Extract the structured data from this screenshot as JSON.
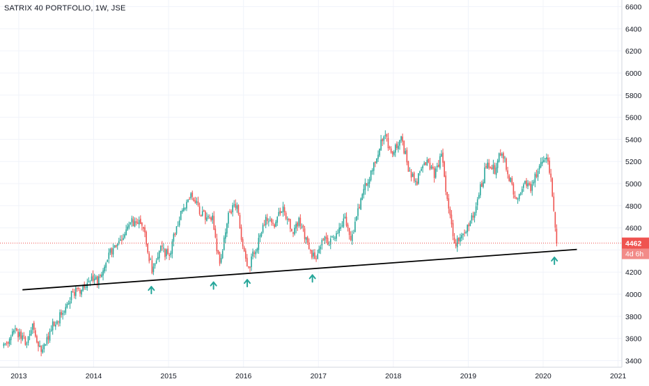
{
  "chart_data": {
    "type": "candlestick",
    "title": "SATRIX 40 PORTFOLIO, 1W, JSE",
    "x_tick_labels": [
      "2013",
      "2014",
      "2015",
      "2016",
      "2017",
      "2018",
      "2019",
      "2020",
      "2021"
    ],
    "y_tick_labels": [
      "3400",
      "3600",
      "3800",
      "4000",
      "4200",
      "4400",
      "4600",
      "4800",
      "5000",
      "5200",
      "5400",
      "5600",
      "5800",
      "6000",
      "6200",
      "6400",
      "6600"
    ],
    "y_ticks": [
      3400,
      3600,
      3800,
      4000,
      4200,
      4400,
      4600,
      4800,
      5000,
      5200,
      5400,
      5600,
      5800,
      6000,
      6200,
      6400,
      6600
    ],
    "x_ticks": [
      2013,
      2014,
      2015,
      2016,
      2017,
      2018,
      2019,
      2020,
      2021
    ],
    "xlim": [
      2012.75,
      2021.05
    ],
    "ylim": [
      3340,
      6660
    ],
    "grid": true,
    "colors": {
      "up": "#26a69a",
      "down": "#ef5350",
      "trendline": "#000000",
      "price_line": "#ef5350",
      "arrow": "#26a69a",
      "grid": "#f0f3fa",
      "axis_text": "#131722"
    },
    "anchors": [
      [
        2012.8,
        3520
      ],
      [
        2012.95,
        3660
      ],
      [
        2013.1,
        3580
      ],
      [
        2013.2,
        3720
      ],
      [
        2013.3,
        3450
      ],
      [
        2013.42,
        3680
      ],
      [
        2013.55,
        3800
      ],
      [
        2013.7,
        3990
      ],
      [
        2013.85,
        4060
      ],
      [
        2013.95,
        4150
      ],
      [
        2014.05,
        4130
      ],
      [
        2014.2,
        4350
      ],
      [
        2014.35,
        4500
      ],
      [
        2014.5,
        4660
      ],
      [
        2014.65,
        4620
      ],
      [
        2014.78,
        4220
      ],
      [
        2014.88,
        4400
      ],
      [
        2015.0,
        4350
      ],
      [
        2015.15,
        4700
      ],
      [
        2015.3,
        4880
      ],
      [
        2015.45,
        4720
      ],
      [
        2015.58,
        4700
      ],
      [
        2015.68,
        4280
      ],
      [
        2015.8,
        4700
      ],
      [
        2015.9,
        4820
      ],
      [
        2016.05,
        4200
      ],
      [
        2016.18,
        4450
      ],
      [
        2016.3,
        4680
      ],
      [
        2016.4,
        4620
      ],
      [
        2016.52,
        4780
      ],
      [
        2016.65,
        4550
      ],
      [
        2016.75,
        4680
      ],
      [
        2016.85,
        4450
      ],
      [
        2016.95,
        4330
      ],
      [
        2017.05,
        4500
      ],
      [
        2017.2,
        4480
      ],
      [
        2017.35,
        4680
      ],
      [
        2017.45,
        4500
      ],
      [
        2017.55,
        4820
      ],
      [
        2017.65,
        5020
      ],
      [
        2017.78,
        5260
      ],
      [
        2017.88,
        5450
      ],
      [
        2017.98,
        5230
      ],
      [
        2018.1,
        5420
      ],
      [
        2018.2,
        5150
      ],
      [
        2018.3,
        4990
      ],
      [
        2018.42,
        5200
      ],
      [
        2018.55,
        5080
      ],
      [
        2018.65,
        5250
      ],
      [
        2018.72,
        4820
      ],
      [
        2018.82,
        4450
      ],
      [
        2018.92,
        4540
      ],
      [
        2019.05,
        4680
      ],
      [
        2019.15,
        4920
      ],
      [
        2019.25,
        5200
      ],
      [
        2019.35,
        5120
      ],
      [
        2019.45,
        5300
      ],
      [
        2019.55,
        5050
      ],
      [
        2019.65,
        4850
      ],
      [
        2019.75,
        5050
      ],
      [
        2019.85,
        4950
      ],
      [
        2019.95,
        5200
      ],
      [
        2020.05,
        5240
      ],
      [
        2020.1,
        5050
      ],
      [
        2020.15,
        4640
      ],
      [
        2020.18,
        4462
      ]
    ],
    "annotations": [
      {
        "type": "trendline",
        "x1": 2013.05,
        "y1": 4040,
        "x2": 2020.45,
        "y2": 4405
      },
      {
        "type": "horizontal_line",
        "y": 4462,
        "style": "dotted"
      },
      {
        "type": "arrows",
        "x": [
          2014.77,
          2015.6,
          2016.05,
          2016.92,
          2020.15
        ]
      }
    ],
    "last_price": {
      "value": "4462",
      "countdown": "4d 6h"
    }
  }
}
